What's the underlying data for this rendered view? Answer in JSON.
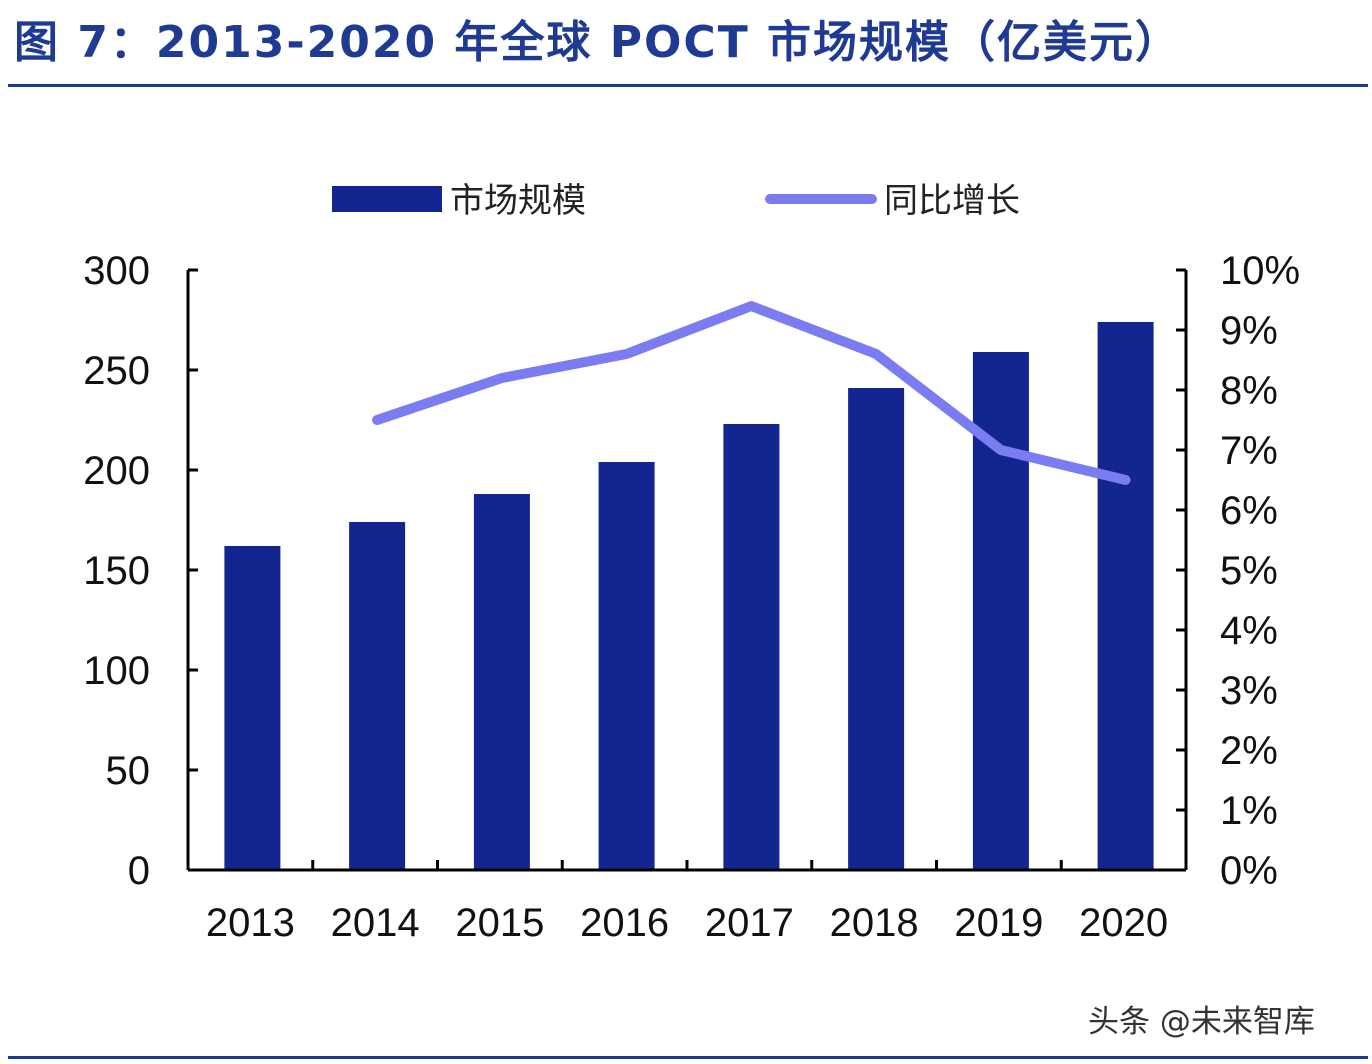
{
  "figure": {
    "title": "图 7：2013-2020 年全球 POCT 市场规模（亿美元）"
  },
  "watermark": "头条 @未来智库",
  "colors": {
    "bar": "#13268f",
    "line": "#7b7bf2",
    "title": "#1f3a93",
    "axis": "#000000"
  },
  "chart_data": {
    "type": "bar",
    "categories": [
      "2013",
      "2014",
      "2015",
      "2016",
      "2017",
      "2018",
      "2019",
      "2020"
    ],
    "series": [
      {
        "name": "市场规模",
        "type": "bar",
        "axis": "left",
        "values": [
          162,
          174,
          188,
          204,
          223,
          241,
          259,
          274
        ]
      },
      {
        "name": "同比增长",
        "type": "line",
        "axis": "right",
        "values": [
          null,
          7.5,
          8.2,
          8.6,
          9.4,
          8.6,
          7.0,
          6.5
        ]
      }
    ],
    "y_left": {
      "ylim": [
        0,
        300
      ],
      "ticks": [
        "0",
        "50",
        "100",
        "150",
        "200",
        "250",
        "300"
      ]
    },
    "y_right": {
      "ylim": [
        0,
        10
      ],
      "ticks": [
        "0%",
        "1%",
        "2%",
        "3%",
        "4%",
        "5%",
        "6%",
        "7%",
        "8%",
        "9%",
        "10%"
      ]
    },
    "legend": {
      "position": "top"
    },
    "grid": false
  }
}
